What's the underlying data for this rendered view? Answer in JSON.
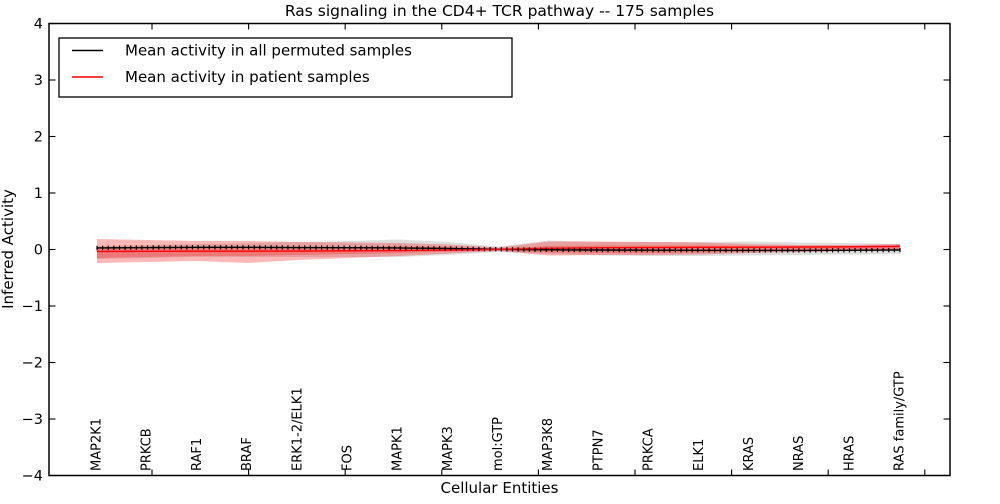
{
  "chart_data": {
    "type": "line",
    "title": "Ras signaling in the CD4+ TCR pathway -- 175 samples",
    "xlabel": "Cellular Entities",
    "ylabel": "Inferred Activity",
    "ylim": [
      -4,
      4
    ],
    "yticklabels": [
      "4",
      "3",
      "2",
      "1",
      "0",
      "−1",
      "−2",
      "−3",
      "−4"
    ],
    "grid": false,
    "legend_position": "upper left",
    "categories": [
      "MAP2K1",
      "PRKCB",
      "RAF1",
      "BRAF",
      "ERK1-2/ELK1",
      "FOS",
      "MAPK1",
      "MAPK3",
      "mol:GTP",
      "MAP3K8",
      "PTPN7",
      "PRKCA",
      "ELK1",
      "KRAS",
      "NRAS",
      "HRAS",
      "RAS family/GTP"
    ],
    "legend": [
      {
        "label": "Mean activity in all permuted samples",
        "color": "#000000"
      },
      {
        "label": "Mean activity in patient samples",
        "color": "#ff0000"
      }
    ],
    "series": [
      {
        "name": "permuted_mean",
        "color": "#000000",
        "values": [
          0.027,
          0.035,
          0.039,
          0.039,
          0.035,
          0.032,
          0.028,
          0.018,
          0.004,
          -0.005,
          -0.009,
          -0.012,
          -0.014,
          -0.016,
          -0.016,
          -0.014,
          -0.009
        ]
      },
      {
        "name": "patient_mean",
        "color": "#ff0000",
        "values": [
          -0.035,
          -0.032,
          -0.03,
          -0.03,
          -0.027,
          -0.023,
          -0.018,
          -0.009,
          0.002,
          0.021,
          0.03,
          0.035,
          0.039,
          0.041,
          0.044,
          0.048,
          0.057
        ]
      }
    ],
    "bands": [
      {
        "name": "permuted_std",
        "color": "#000000",
        "opacity": 0.13,
        "upper": [
          0.062,
          0.08,
          0.097,
          0.115,
          0.133,
          0.15,
          0.177,
          0.133,
          0.053,
          0.159,
          0.133,
          0.133,
          0.133,
          0.142,
          0.124,
          0.115,
          0.097
        ],
        "lower": [
          -0.168,
          -0.15,
          -0.133,
          -0.133,
          -0.133,
          -0.133,
          -0.133,
          -0.097,
          -0.044,
          -0.08,
          -0.106,
          -0.115,
          -0.115,
          -0.106,
          -0.097,
          -0.088,
          -0.08
        ]
      },
      {
        "name": "patient_std_outer",
        "color": "#ff0000",
        "opacity": 0.28,
        "upper": [
          0.186,
          0.168,
          0.15,
          0.15,
          0.133,
          0.124,
          0.115,
          0.088,
          0.035,
          0.142,
          0.142,
          0.133,
          0.124,
          0.097,
          0.08,
          0.08,
          0.097
        ],
        "lower": [
          -0.239,
          -0.221,
          -0.204,
          -0.239,
          -0.186,
          -0.15,
          -0.115,
          -0.071,
          -0.027,
          -0.106,
          -0.097,
          -0.097,
          -0.088,
          -0.062,
          -0.044,
          -0.027,
          -0.009
        ]
      },
      {
        "name": "patient_std_inner",
        "color": "#ff0000",
        "opacity": 0.25,
        "upper": [
          0.044,
          0.044,
          0.044,
          0.044,
          0.044,
          0.044,
          0.053,
          0.044,
          0.018,
          0.062,
          0.071,
          0.071,
          0.071,
          0.062,
          0.062,
          0.062,
          0.071
        ],
        "lower": [
          -0.15,
          -0.133,
          -0.115,
          -0.115,
          -0.097,
          -0.08,
          -0.062,
          -0.035,
          -0.018,
          -0.053,
          -0.062,
          -0.062,
          -0.053,
          -0.035,
          -0.018,
          -0.009,
          0.0
        ]
      }
    ],
    "n_marker_points": 144
  }
}
